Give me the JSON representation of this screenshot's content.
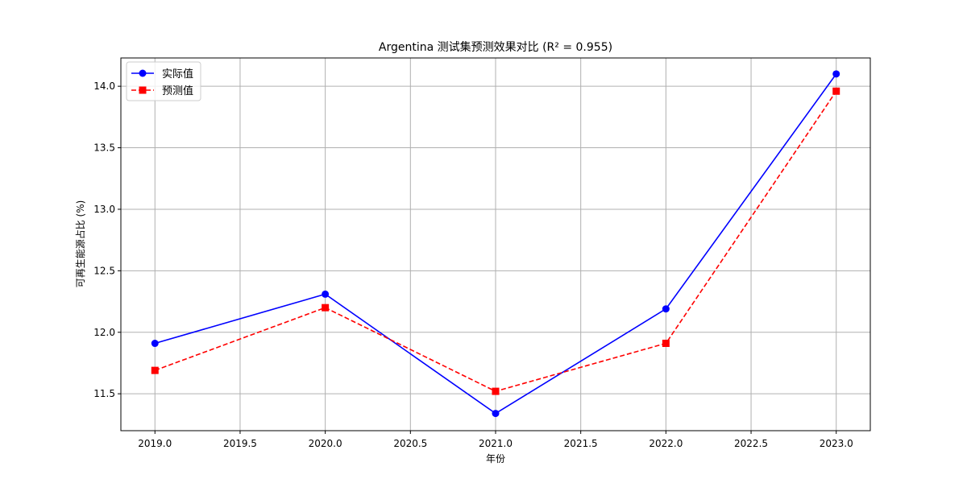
{
  "chart_data": {
    "type": "line",
    "title": "Argentina 测试集预测效果对比 (R² = 0.955)",
    "xlabel": "年份",
    "ylabel": "可再生能源占比 (%)",
    "x": [
      2019,
      2020,
      2021,
      2022,
      2023
    ],
    "xlim": [
      2018.8,
      2023.2
    ],
    "ylim": [
      11.2,
      14.23
    ],
    "xticks": [
      2019.0,
      2019.5,
      2020.0,
      2020.5,
      2021.0,
      2021.5,
      2022.0,
      2022.5,
      2023.0
    ],
    "xtick_labels": [
      "2019.0",
      "2019.5",
      "2020.0",
      "2020.5",
      "2021.0",
      "2021.5",
      "2022.0",
      "2022.5",
      "2023.0"
    ],
    "yticks": [
      11.5,
      12.0,
      12.5,
      13.0,
      13.5,
      14.0
    ],
    "ytick_labels": [
      "11.5",
      "12.0",
      "12.5",
      "13.0",
      "13.5",
      "14.0"
    ],
    "grid": true,
    "legend_position": "top-left",
    "series": [
      {
        "name": "实际值",
        "values": [
          11.91,
          12.31,
          11.34,
          12.19,
          14.1
        ],
        "color": "#0000ff",
        "line_style": "solid",
        "marker": "circle"
      },
      {
        "name": "预测值",
        "values": [
          11.69,
          12.2,
          11.52,
          11.91,
          13.96
        ],
        "color": "#ff0000",
        "line_style": "dashed",
        "marker": "square"
      }
    ]
  }
}
